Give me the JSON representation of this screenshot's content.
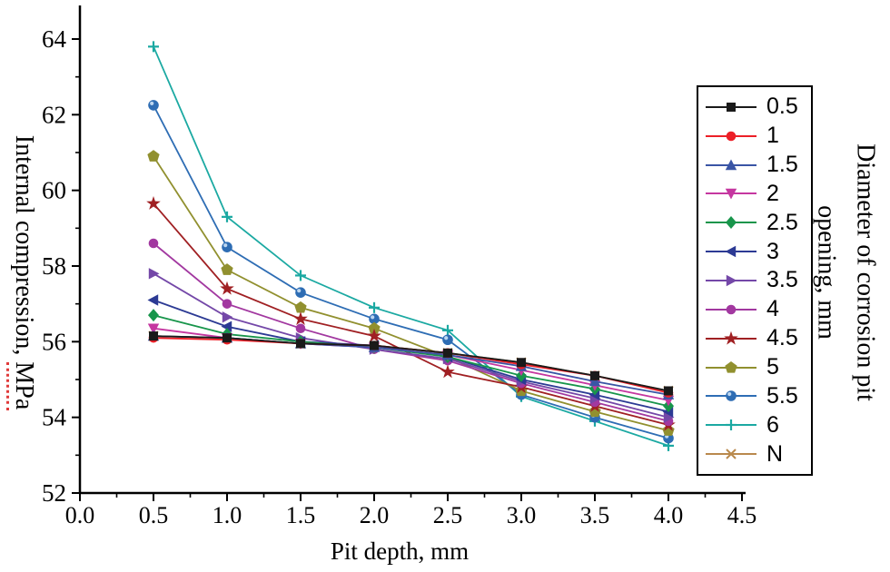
{
  "figure": {
    "background": "#ffffff"
  },
  "chart_data": {
    "type": "line",
    "title": "",
    "xlabel": "Pit depth, mm",
    "ylabel": "Internal compression, MPa",
    "ylabel_prefix": "Internal compression, ",
    "ylabel_unit": "MPa",
    "legend_title": "Diameter of corrosion pit opening, mm",
    "legend_title_lines": [
      "Diameter of corrosion pit",
      "opening, mm"
    ],
    "legend_position": "right",
    "grid": false,
    "xlim": [
      0,
      4.5
    ],
    "ylim": [
      52,
      65
    ],
    "x_ticks": [
      0.0,
      0.5,
      1.0,
      1.5,
      2.0,
      2.5,
      3.0,
      3.5,
      4.0,
      4.5
    ],
    "x_tick_labels": [
      "0.0",
      "0.5",
      "1.0",
      "1.5",
      "2.0",
      "2.5",
      "3.0",
      "3.5",
      "4.0",
      "4.5"
    ],
    "y_ticks": [
      52,
      54,
      56,
      58,
      60,
      62,
      64
    ],
    "y_tick_labels": [
      "52",
      "54",
      "56",
      "58",
      "60",
      "62",
      "64"
    ],
    "x": [
      0.5,
      1.0,
      1.5,
      2.0,
      2.5,
      3.0,
      3.5,
      4.0
    ],
    "series": [
      {
        "name": "0.5",
        "color": "#1a1a1a",
        "marker": "square",
        "values": [
          56.15,
          56.1,
          55.95,
          55.9,
          55.7,
          55.45,
          55.1,
          54.7
        ]
      },
      {
        "name": "1",
        "color": "#ec1f27",
        "marker": "circle",
        "values": [
          56.1,
          56.05,
          55.95,
          55.9,
          55.7,
          55.4,
          55.1,
          54.65
        ]
      },
      {
        "name": "1.5",
        "color": "#3a55a5",
        "marker": "triangle-up",
        "values": [
          56.15,
          56.1,
          55.95,
          55.85,
          55.65,
          55.35,
          54.95,
          54.6
        ]
      },
      {
        "name": "2",
        "color": "#c537a0",
        "marker": "triangle-down",
        "values": [
          56.35,
          56.1,
          55.95,
          55.85,
          55.65,
          55.25,
          54.85,
          54.45
        ]
      },
      {
        "name": "2.5",
        "color": "#18954b",
        "marker": "diamond",
        "values": [
          56.7,
          56.2,
          56.0,
          55.85,
          55.6,
          55.1,
          54.75,
          54.3
        ]
      },
      {
        "name": "3",
        "color": "#2c3a94",
        "marker": "triangle-left",
        "values": [
          57.1,
          56.4,
          56.0,
          55.9,
          55.6,
          55.0,
          54.6,
          54.15
        ]
      },
      {
        "name": "3.5",
        "color": "#7448a8",
        "marker": "triangle-right",
        "values": [
          57.8,
          56.65,
          56.1,
          55.8,
          55.55,
          54.95,
          54.5,
          54.0
        ]
      },
      {
        "name": "4",
        "color": "#a238a0",
        "marker": "circle",
        "values": [
          58.6,
          57.0,
          56.35,
          55.8,
          55.5,
          54.9,
          54.4,
          53.9
        ]
      },
      {
        "name": "4.5",
        "color": "#a02023",
        "marker": "star",
        "values": [
          59.65,
          57.4,
          56.6,
          56.15,
          55.2,
          54.8,
          54.3,
          53.8
        ]
      },
      {
        "name": "5",
        "color": "#91902f",
        "marker": "pentagon",
        "values": [
          60.9,
          57.9,
          56.9,
          56.35,
          55.6,
          54.7,
          54.15,
          53.65
        ]
      },
      {
        "name": "5.5",
        "color": "#2e6db4",
        "marker": "sphere",
        "values": [
          62.25,
          58.5,
          57.3,
          56.6,
          56.05,
          54.6,
          54.0,
          53.45
        ]
      },
      {
        "name": "6",
        "color": "#1ba9a2",
        "marker": "plus",
        "values": [
          63.8,
          59.3,
          57.75,
          56.9,
          56.3,
          54.55,
          53.9,
          53.25
        ]
      },
      {
        "name": "N",
        "color": "#b9894d",
        "marker": "x-cross",
        "values": [
          56.15,
          56.1,
          55.95,
          55.9,
          55.7,
          55.45,
          55.1,
          54.7
        ]
      }
    ]
  }
}
